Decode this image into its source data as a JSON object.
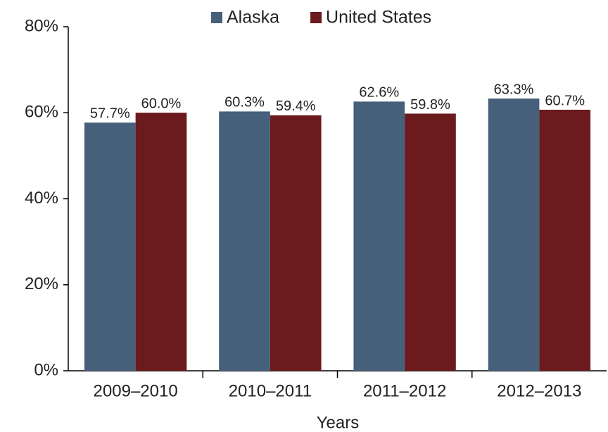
{
  "chart_data": {
    "type": "bar",
    "x_label": "Years",
    "categories": [
      "2009–2010",
      "2010–2011",
      "2011–2012",
      "2012–2013"
    ],
    "series": [
      {
        "name": "Alaska",
        "color": "#465f7a",
        "values": [
          57.7,
          60.3,
          62.6,
          63.3
        ],
        "value_labels": [
          "57.7%",
          "60.3%",
          "62.6%",
          "63.3%"
        ]
      },
      {
        "name": "United States",
        "color": "#6b1a1e",
        "values": [
          60.0,
          59.4,
          59.8,
          60.7
        ],
        "value_labels": [
          "60.0%",
          "59.4%",
          "59.8%",
          "60.7%"
        ]
      }
    ],
    "ylim": [
      0,
      80
    ],
    "yticks": [
      {
        "value": 0,
        "label": "0%"
      },
      {
        "value": 20,
        "label": "20%"
      },
      {
        "value": 40,
        "label": "40%"
      },
      {
        "value": 60,
        "label": "60%"
      },
      {
        "value": 80,
        "label": "80%"
      }
    ],
    "grid": false,
    "legend": "top"
  }
}
